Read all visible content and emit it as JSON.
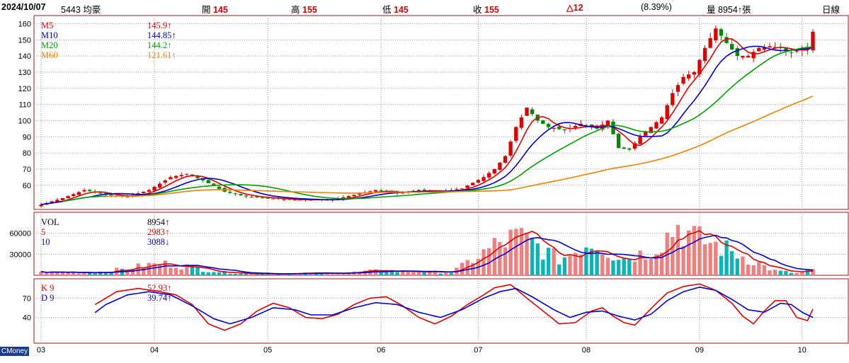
{
  "header": {
    "date": "2024/10/07",
    "stock": "5443 均豪",
    "open_label": "開",
    "open": "145",
    "high_label": "高",
    "high": "155",
    "low_label": "低",
    "low": "145",
    "close_label": "收",
    "close": "155",
    "change": "△12",
    "change_pct": "(8.39%)",
    "volume_label": "量",
    "volume": "8954↑張",
    "period": "日線"
  },
  "badge": "CMoney",
  "colors": {
    "up": "#e00000",
    "down": "#008a00",
    "ma5": "#e00000",
    "ma10": "#0000cc",
    "ma20": "#00a000",
    "ma60": "#f08000",
    "vol_up": "#f08080",
    "vol_down": "#00b8b8",
    "frame": "#9a1a1a"
  },
  "price_legend": [
    {
      "name": "M5",
      "value": "145.9↑",
      "color": "#e00000"
    },
    {
      "name": "M10",
      "value": "144.85↑",
      "color": "#0000cc"
    },
    {
      "name": "M20",
      "value": "144.2↑",
      "color": "#00a000"
    },
    {
      "name": "M60",
      "value": "121.61↑",
      "color": "#f08000"
    }
  ],
  "volume_legend": [
    {
      "name": "VOL",
      "value": "8954↑",
      "color": "#000000"
    },
    {
      "name": "5",
      "value": "2983↑",
      "color": "#e00000"
    },
    {
      "name": "10",
      "value": "3088↓",
      "color": "#0000cc"
    }
  ],
  "kd_legend": [
    {
      "name": "K 9",
      "value": "52.93↑",
      "color": "#e00000"
    },
    {
      "name": "D 9",
      "value": "39.74↑",
      "color": "#0000cc"
    }
  ],
  "chart_data": {
    "type": "candlestick",
    "price_axis": {
      "ticks": [
        60,
        70,
        80,
        90,
        100,
        110,
        120,
        130,
        140,
        150,
        160
      ],
      "range": [
        45,
        165
      ]
    },
    "volume_axis": {
      "ticks": [
        30000,
        60000
      ],
      "range": [
        0,
        90000
      ]
    },
    "kd_axis": {
      "ticks": [
        40,
        70
      ],
      "range": [
        0,
        100
      ]
    },
    "months": [
      "03",
      "04",
      "05",
      "06",
      "07",
      "08",
      "09",
      "10"
    ],
    "month_index": [
      0,
      21,
      42,
      63,
      81,
      101,
      122,
      141
    ],
    "close_anchors": [
      [
        0,
        48
      ],
      [
        4,
        52
      ],
      [
        8,
        57
      ],
      [
        12,
        54
      ],
      [
        16,
        53
      ],
      [
        20,
        57
      ],
      [
        24,
        65
      ],
      [
        27,
        67
      ],
      [
        30,
        63
      ],
      [
        34,
        56
      ],
      [
        38,
        53
      ],
      [
        42,
        52
      ],
      [
        46,
        51
      ],
      [
        50,
        51
      ],
      [
        54,
        51
      ],
      [
        58,
        54
      ],
      [
        62,
        57
      ],
      [
        66,
        55
      ],
      [
        70,
        57
      ],
      [
        74,
        56
      ],
      [
        78,
        58
      ],
      [
        82,
        65
      ],
      [
        84,
        70
      ],
      [
        86,
        78
      ],
      [
        88,
        96
      ],
      [
        90,
        108
      ],
      [
        92,
        100
      ],
      [
        94,
        96
      ],
      [
        97,
        94
      ],
      [
        100,
        98
      ],
      [
        103,
        95
      ],
      [
        105,
        100
      ],
      [
        107,
        83
      ],
      [
        109,
        82
      ],
      [
        111,
        90
      ],
      [
        113,
        96
      ],
      [
        115,
        102
      ],
      [
        117,
        117
      ],
      [
        119,
        127
      ],
      [
        121,
        130
      ],
      [
        123,
        145
      ],
      [
        125,
        157
      ],
      [
        127,
        148
      ],
      [
        129,
        140
      ],
      [
        131,
        140
      ],
      [
        133,
        145
      ],
      [
        135,
        146
      ],
      [
        137,
        145
      ],
      [
        139,
        142
      ],
      [
        141,
        145
      ],
      [
        142,
        144
      ],
      [
        143,
        155
      ]
    ],
    "volume_anchors": [
      [
        0,
        4000
      ],
      [
        10,
        4000
      ],
      [
        15,
        8000
      ],
      [
        20,
        14000
      ],
      [
        24,
        16000
      ],
      [
        27,
        12000
      ],
      [
        30,
        8000
      ],
      [
        34,
        4000
      ],
      [
        40,
        2000
      ],
      [
        55,
        3000
      ],
      [
        60,
        5000
      ],
      [
        62,
        6000
      ],
      [
        70,
        5000
      ],
      [
        76,
        4000
      ],
      [
        78,
        12000
      ],
      [
        80,
        22000
      ],
      [
        82,
        30000
      ],
      [
        84,
        40000
      ],
      [
        86,
        46000
      ],
      [
        88,
        52000
      ],
      [
        90,
        48000
      ],
      [
        92,
        40000
      ],
      [
        94,
        30000
      ],
      [
        96,
        22000
      ],
      [
        98,
        28000
      ],
      [
        100,
        40000
      ],
      [
        102,
        46000
      ],
      [
        104,
        40000
      ],
      [
        106,
        28000
      ],
      [
        108,
        24000
      ],
      [
        110,
        28000
      ],
      [
        112,
        30000
      ],
      [
        114,
        40000
      ],
      [
        116,
        54000
      ],
      [
        118,
        68000
      ],
      [
        120,
        56000
      ],
      [
        122,
        48000
      ],
      [
        124,
        44000
      ],
      [
        126,
        38000
      ],
      [
        128,
        32000
      ],
      [
        130,
        26000
      ],
      [
        132,
        20000
      ],
      [
        134,
        12000
      ],
      [
        136,
        6000
      ],
      [
        140,
        3000
      ],
      [
        143,
        8954
      ]
    ],
    "k_anchors": [
      [
        0,
        50
      ],
      [
        4,
        20
      ],
      [
        7,
        30
      ],
      [
        10,
        60
      ],
      [
        14,
        80
      ],
      [
        18,
        85
      ],
      [
        22,
        80
      ],
      [
        25,
        75
      ],
      [
        28,
        60
      ],
      [
        31,
        30
      ],
      [
        34,
        20
      ],
      [
        37,
        30
      ],
      [
        40,
        50
      ],
      [
        43,
        62
      ],
      [
        46,
        55
      ],
      [
        49,
        40
      ],
      [
        52,
        38
      ],
      [
        55,
        45
      ],
      [
        58,
        60
      ],
      [
        61,
        70
      ],
      [
        64,
        72
      ],
      [
        67,
        58
      ],
      [
        70,
        40
      ],
      [
        73,
        30
      ],
      [
        76,
        42
      ],
      [
        79,
        60
      ],
      [
        82,
        75
      ],
      [
        84,
        86
      ],
      [
        87,
        91
      ],
      [
        90,
        70
      ],
      [
        93,
        50
      ],
      [
        96,
        30
      ],
      [
        99,
        32
      ],
      [
        102,
        50
      ],
      [
        104,
        55
      ],
      [
        106,
        42
      ],
      [
        108,
        32
      ],
      [
        110,
        28
      ],
      [
        112,
        45
      ],
      [
        114,
        62
      ],
      [
        116,
        78
      ],
      [
        119,
        88
      ],
      [
        122,
        92
      ],
      [
        125,
        82
      ],
      [
        128,
        62
      ],
      [
        130,
        42
      ],
      [
        132,
        30
      ],
      [
        134,
        50
      ],
      [
        136,
        66
      ],
      [
        138,
        66
      ],
      [
        140,
        40
      ],
      [
        142,
        35
      ],
      [
        143,
        53
      ]
    ],
    "d_anchors": [
      [
        0,
        60
      ],
      [
        4,
        32
      ],
      [
        8,
        35
      ],
      [
        12,
        60
      ],
      [
        16,
        75
      ],
      [
        20,
        80
      ],
      [
        24,
        75
      ],
      [
        28,
        58
      ],
      [
        32,
        38
      ],
      [
        35,
        30
      ],
      [
        39,
        40
      ],
      [
        43,
        55
      ],
      [
        47,
        52
      ],
      [
        50,
        44
      ],
      [
        54,
        44
      ],
      [
        58,
        55
      ],
      [
        62,
        63
      ],
      [
        66,
        60
      ],
      [
        70,
        48
      ],
      [
        74,
        40
      ],
      [
        78,
        52
      ],
      [
        82,
        70
      ],
      [
        85,
        80
      ],
      [
        88,
        85
      ],
      [
        91,
        72
      ],
      [
        95,
        52
      ],
      [
        98,
        40
      ],
      [
        101,
        48
      ],
      [
        104,
        50
      ],
      [
        107,
        42
      ],
      [
        110,
        36
      ],
      [
        113,
        45
      ],
      [
        116,
        66
      ],
      [
        119,
        80
      ],
      [
        122,
        87
      ],
      [
        125,
        82
      ],
      [
        128,
        68
      ],
      [
        131,
        52
      ],
      [
        134,
        48
      ],
      [
        137,
        62
      ],
      [
        139,
        60
      ],
      [
        141,
        48
      ],
      [
        143,
        40
      ]
    ]
  }
}
